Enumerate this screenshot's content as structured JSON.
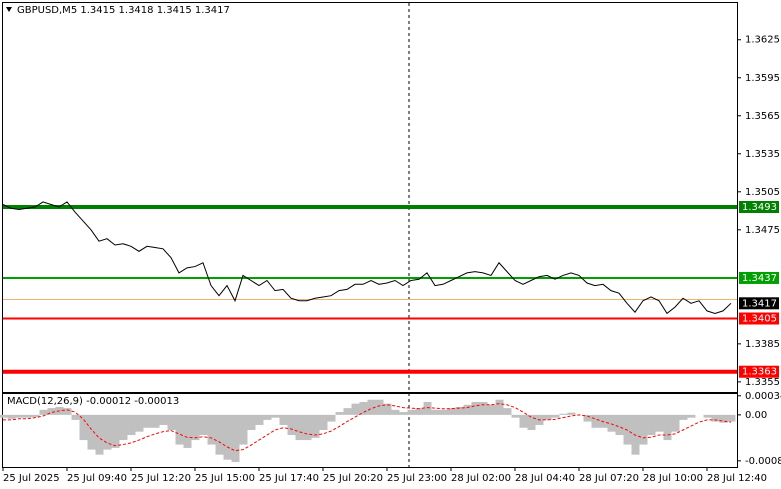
{
  "chart_data": [
    {
      "type": "line",
      "title": "GBPUSD,M5  1.3415 1.3418 1.3415 1.3417",
      "categories": [
        "25 Jul 2025",
        null,
        null,
        null,
        null,
        null,
        null,
        null,
        "25 Jul 09:40",
        null,
        null,
        null,
        null,
        null,
        null,
        null,
        "25 Jul 12:20",
        null,
        null,
        null,
        null,
        null,
        null,
        null,
        "25 Jul 15:00",
        null,
        null,
        null,
        null,
        null,
        null,
        null,
        "25 Jul 17:40",
        null,
        null,
        null,
        null,
        null,
        null,
        null,
        "25 Jul 20:20",
        null,
        null,
        null,
        null,
        null,
        null,
        null,
        "25 Jul 23:00",
        null,
        null,
        null,
        null,
        null,
        null,
        null,
        "28 Jul 02:00",
        null,
        null,
        null,
        null,
        null,
        null,
        null,
        "28 Jul 04:40",
        null,
        null,
        null,
        null,
        null,
        null,
        null,
        "28 Jul 07:20",
        null,
        null,
        null,
        null,
        null,
        null,
        null,
        "28 Jul 10:00",
        null,
        null,
        null,
        null,
        null,
        null,
        null,
        "28 Jul 12:40",
        null,
        null,
        null
      ],
      "values": [
        1.3495,
        1.3492,
        1.3491,
        1.3492,
        1.3493,
        1.3497,
        1.3495,
        1.3493,
        1.3497,
        1.3489,
        1.3482,
        1.3475,
        1.3466,
        1.3468,
        1.3463,
        1.3464,
        1.3462,
        1.3458,
        1.3462,
        1.3461,
        1.346,
        1.3453,
        1.3441,
        1.3445,
        1.3446,
        1.3449,
        1.3431,
        1.3423,
        1.3431,
        1.3419,
        1.3439,
        1.3435,
        1.3431,
        1.3435,
        1.3427,
        1.3428,
        1.3421,
        1.3419,
        1.3419,
        1.3421,
        1.3422,
        1.3423,
        1.3427,
        1.3428,
        1.3432,
        1.3432,
        1.3435,
        1.3432,
        1.3433,
        1.3435,
        1.3431,
        1.3435,
        1.3436,
        1.3441,
        1.3431,
        1.3432,
        1.3435,
        1.3438,
        1.3441,
        1.3442,
        1.3441,
        1.3439,
        1.3449,
        1.3442,
        1.3435,
        1.3432,
        1.3435,
        1.3438,
        1.3439,
        1.3436,
        1.3439,
        1.3441,
        1.3439,
        1.3433,
        1.3431,
        1.3432,
        1.3427,
        1.3425,
        1.3417,
        1.341,
        1.3419,
        1.3422,
        1.3419,
        1.3409,
        1.3414,
        1.3421,
        1.3417,
        1.3419,
        1.3411,
        1.3409,
        1.3411,
        1.3417
      ],
      "color": "#000000",
      "ylim": [
        1.3347,
        1.3654
      ],
      "yticks": [
        1.3625,
        1.3595,
        1.3565,
        1.3535,
        1.3505,
        1.3475,
        1.3385,
        1.3355
      ],
      "hlines": [
        {
          "value": 1.3493,
          "color": "#008000",
          "width": 4
        },
        {
          "value": 1.3437,
          "color": "#00a000",
          "width": 2
        },
        {
          "value": 1.3405,
          "color": "#ff0000",
          "width": 2
        },
        {
          "value": 1.3363,
          "color": "#ff0000",
          "width": 4
        }
      ],
      "ask_line": {
        "value": 1.342,
        "color": "#f0b070"
      },
      "last_price": 1.3417
    },
    {
      "type": "macd",
      "title": "MACD(12,26,9) -0.00012 -0.00013",
      "values": [
        -5e-05,
        -7e-05,
        -5e-05,
        -5e-05,
        -4e-05,
        9e-05,
        0.00012,
        0.00014,
        0.00012,
        -9e-05,
        -0.00045,
        -0.00062,
        -0.00071,
        -0.00062,
        -0.00059,
        -0.00045,
        -0.00036,
        -0.0003,
        -0.00023,
        -0.00023,
        -0.00018,
        -0.00027,
        -0.00053,
        -0.00059,
        -0.00045,
        -0.00036,
        -0.00053,
        -0.00071,
        -0.0008,
        -0.00084,
        -0.00053,
        -0.00027,
        -0.00018,
        -9e-05,
        -5e-05,
        -0.00018,
        -0.00036,
        -0.00045,
        -0.00045,
        -0.00041,
        -0.00027,
        -0.00012,
        5e-05,
        0.00012,
        0.0002,
        0.00023,
        0.00027,
        0.00027,
        0.0002,
        9e-05,
        5e-05,
        9e-05,
        0.00012,
        0.00023,
        9e-05,
        9e-05,
        0.00012,
        0.00014,
        0.00018,
        0.00023,
        0.00023,
        0.00018,
        0.00027,
        0.00012,
        -5e-05,
        -0.00023,
        -0.00027,
        -0.00018,
        -9e-05,
        -5e-05,
        2e-05,
        4e-05,
        0,
        -0.00012,
        -0.00023,
        -0.00023,
        -0.0003,
        -0.00036,
        -0.00053,
        -0.00071,
        -0.00053,
        -0.00036,
        -0.0003,
        -0.00045,
        -0.0003,
        -9e-05,
        -5e-05,
        0,
        -5e-05,
        -0.00012,
        -0.00014,
        -0.00012
      ],
      "color": "#c0c0c0",
      "signal": {
        "color": "#ff0000",
        "values": [
          -9e-05,
          -9e-05,
          -7e-05,
          -7e-05,
          -5e-05,
          -2e-05,
          4e-05,
          7e-05,
          9e-05,
          5e-05,
          -7e-05,
          -0.00025,
          -0.00041,
          -0.0005,
          -0.00055,
          -0.00053,
          -0.0005,
          -0.00045,
          -0.00039,
          -0.00034,
          -0.0003,
          -0.00028,
          -0.00034,
          -0.0004,
          -0.00041,
          -0.00039,
          -0.00041,
          -0.00048,
          -0.00057,
          -0.00064,
          -0.00062,
          -0.00054,
          -0.00045,
          -0.00036,
          -0.00027,
          -0.00023,
          -0.00025,
          -0.0003,
          -0.00034,
          -0.00036,
          -0.00034,
          -0.00029,
          -0.00021,
          -0.00012,
          -4e-05,
          4e-05,
          0.00011,
          0.00016,
          0.00018,
          0.00016,
          0.00013,
          0.00012,
          0.00011,
          0.00013,
          0.00012,
          0.00011,
          0.00011,
          0.00012,
          0.00013,
          0.00016,
          0.00018,
          0.00018,
          0.0002,
          0.00018,
          0.00013,
          5e-05,
          -4e-05,
          -9e-05,
          -9e-05,
          -8e-05,
          -5e-05,
          -2e-05,
          0,
          -2e-05,
          -7e-05,
          -0.00012,
          -0.00016,
          -0.00021,
          -0.00027,
          -0.00036,
          -0.00041,
          -0.0004,
          -0.00036,
          -0.00036,
          -0.00034,
          -0.00027,
          -0.0002,
          -0.00013,
          -9e-05,
          -9e-05,
          -0.00011,
          -0.00013
        ]
      },
      "ylim": [
        -0.00093,
        0.00039
      ],
      "yticks": [
        0.00034,
        {
          "value": 0,
          "label": "0.00"
        },
        -0.00082
      ]
    }
  ]
}
